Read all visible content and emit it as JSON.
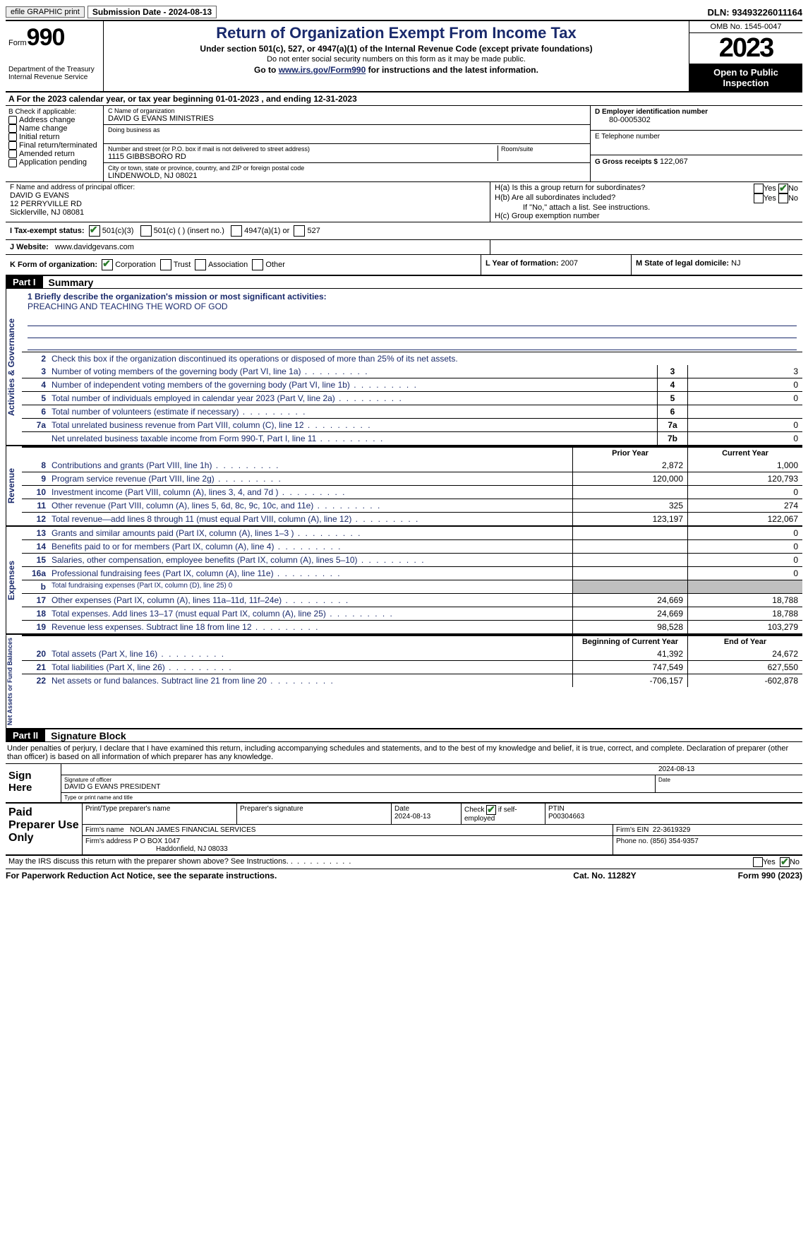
{
  "top": {
    "efile": "efile GRAPHIC print",
    "submission": "Submission Date - 2024-08-13",
    "dln": "DLN: 93493226011164"
  },
  "header": {
    "form_label": "Form",
    "form_number": "990",
    "dept": "Department of the Treasury Internal Revenue Service",
    "title": "Return of Organization Exempt From Income Tax",
    "subtitle": "Under section 501(c), 527, or 4947(a)(1) of the Internal Revenue Code (except private foundations)",
    "note": "Do not enter social security numbers on this form as it may be made public.",
    "goto_prefix": "Go to ",
    "goto_link": "www.irs.gov/Form990",
    "goto_suffix": " for instructions and the latest information.",
    "omb": "OMB No. 1545-0047",
    "year": "2023",
    "inspection": "Open to Public Inspection"
  },
  "A": "A  For the 2023 calendar year, or tax year beginning 01-01-2023   , and ending 12-31-2023",
  "B": {
    "label": "B Check if applicable:",
    "opts": [
      "Address change",
      "Name change",
      "Initial return",
      "Final return/terminated",
      "Amended return",
      "Application pending"
    ]
  },
  "C": {
    "name_label": "C Name of organization",
    "name": "DAVID G EVANS MINISTRIES",
    "dba_label": "Doing business as",
    "street_label": "Number and street (or P.O. box if mail is not delivered to street address)",
    "street": "1115 GIBBSBORO RD",
    "room_label": "Room/suite",
    "city_label": "City or town, state or province, country, and ZIP or foreign postal code",
    "city": "LINDENWOLD, NJ  08021"
  },
  "D": {
    "label": "D Employer identification number",
    "value": "80-0005302"
  },
  "E": {
    "label": "E Telephone number"
  },
  "G": {
    "label": "G Gross receipts $",
    "value": "122,067"
  },
  "F": {
    "label": "F  Name and address of principal officer:",
    "name": "DAVID G EVANS",
    "addr1": "12 PERRYVILLE RD",
    "addr2": "Sicklerville, NJ  08081"
  },
  "H": {
    "a_label": "H(a)  Is this a group return for subordinates?",
    "a_no": true,
    "b_label": "H(b)  Are all subordinates included?",
    "b_note": "If \"No,\" attach a list. See instructions.",
    "c_label": "H(c)  Group exemption number"
  },
  "I": {
    "label": "I   Tax-exempt status:",
    "o1": "501(c)(3)",
    "o2": "501(c) (  ) (insert no.)",
    "o3": "4947(a)(1) or",
    "o4": "527"
  },
  "J": {
    "label": "J   Website:",
    "value": "www.davidgevans.com"
  },
  "K": {
    "label": "K Form of organization:",
    "o1": "Corporation",
    "o2": "Trust",
    "o3": "Association",
    "o4": "Other"
  },
  "L": {
    "label": "L Year of formation:",
    "value": "2007"
  },
  "M": {
    "label": "M State of legal domicile:",
    "value": "NJ"
  },
  "parts": {
    "p1_header": "Part I",
    "p1_title": "Summary",
    "p2_header": "Part II",
    "p2_title": "Signature Block"
  },
  "summary": {
    "sides": [
      "Activities & Governance",
      "Revenue",
      "Expenses",
      "Net Assets or Fund Balances"
    ],
    "line1_label": "1   Briefly describe the organization's mission or most significant activities:",
    "mission": "PREACHING AND TEACHING THE WORD OF GOD",
    "line2": "Check this box      if the organization discontinued its operations or disposed of more than 25% of its net assets.",
    "gov": [
      {
        "n": "3",
        "t": "Number of voting members of the governing body (Part VI, line 1a)",
        "c": "3",
        "v": "3"
      },
      {
        "n": "4",
        "t": "Number of independent voting members of the governing body (Part VI, line 1b)",
        "c": "4",
        "v": "0"
      },
      {
        "n": "5",
        "t": "Total number of individuals employed in calendar year 2023 (Part V, line 2a)",
        "c": "5",
        "v": "0"
      },
      {
        "n": "6",
        "t": "Total number of volunteers (estimate if necessary)",
        "c": "6",
        "v": ""
      },
      {
        "n": "7a",
        "t": "Total unrelated business revenue from Part VIII, column (C), line 12",
        "c": "7a",
        "v": "0"
      },
      {
        "n": "",
        "t": "Net unrelated business taxable income from Form 990-T, Part I, line 11",
        "c": "7b",
        "v": "0"
      }
    ],
    "head_prior": "Prior Year",
    "head_current": "Current Year",
    "rev": [
      {
        "n": "8",
        "t": "Contributions and grants (Part VIII, line 1h)",
        "p": "2,872",
        "c": "1,000"
      },
      {
        "n": "9",
        "t": "Program service revenue (Part VIII, line 2g)",
        "p": "120,000",
        "c": "120,793"
      },
      {
        "n": "10",
        "t": "Investment income (Part VIII, column (A), lines 3, 4, and 7d )",
        "p": "",
        "c": "0"
      },
      {
        "n": "11",
        "t": "Other revenue (Part VIII, column (A), lines 5, 6d, 8c, 9c, 10c, and 11e)",
        "p": "325",
        "c": "274"
      },
      {
        "n": "12",
        "t": "Total revenue—add lines 8 through 11 (must equal Part VIII, column (A), line 12)",
        "p": "123,197",
        "c": "122,067"
      }
    ],
    "exp": [
      {
        "n": "13",
        "t": "Grants and similar amounts paid (Part IX, column (A), lines 1–3 )",
        "p": "",
        "c": "0"
      },
      {
        "n": "14",
        "t": "Benefits paid to or for members (Part IX, column (A), line 4)",
        "p": "",
        "c": "0"
      },
      {
        "n": "15",
        "t": "Salaries, other compensation, employee benefits (Part IX, column (A), lines 5–10)",
        "p": "",
        "c": "0"
      },
      {
        "n": "16a",
        "t": "Professional fundraising fees (Part IX, column (A), line 11e)",
        "p": "",
        "c": "0"
      },
      {
        "n": "b",
        "t": "Total fundraising expenses (Part IX, column (D), line 25) 0",
        "p": "SHADED",
        "c": "SHADED",
        "small": true
      },
      {
        "n": "17",
        "t": "Other expenses (Part IX, column (A), lines 11a–11d, 11f–24e)",
        "p": "24,669",
        "c": "18,788"
      },
      {
        "n": "18",
        "t": "Total expenses. Add lines 13–17 (must equal Part IX, column (A), line 25)",
        "p": "24,669",
        "c": "18,788"
      },
      {
        "n": "19",
        "t": "Revenue less expenses. Subtract line 18 from line 12",
        "p": "98,528",
        "c": "103,279"
      }
    ],
    "head_begin": "Beginning of Current Year",
    "head_end": "End of Year",
    "net": [
      {
        "n": "20",
        "t": "Total assets (Part X, line 16)",
        "p": "41,392",
        "c": "24,672"
      },
      {
        "n": "21",
        "t": "Total liabilities (Part X, line 26)",
        "p": "747,549",
        "c": "627,550"
      },
      {
        "n": "22",
        "t": "Net assets or fund balances. Subtract line 21 from line 20",
        "p": "-706,157",
        "c": "-602,878"
      }
    ]
  },
  "sig": {
    "declare": "Under penalties of perjury, I declare that I have examined this return, including accompanying schedules and statements, and to the best of my knowledge and belief, it is true, correct, and complete. Declaration of preparer (other than officer) is based on all information of which preparer has any knowledge.",
    "sign_here": "Sign Here",
    "date_top": "2024-08-13",
    "sig_label": "Signature of officer",
    "officer": "DAVID G EVANS  PRESIDENT",
    "type_label": "Type or print name and title",
    "date_label": "Date"
  },
  "prep": {
    "title": "Paid Preparer Use Only",
    "h1": "Print/Type preparer's name",
    "h2": "Preparer's signature",
    "h3": "Date",
    "date": "2024-08-13",
    "h4a": "Check",
    "h4b": "if self-employed",
    "h5": "PTIN",
    "ptin": "P00304663",
    "firm_label": "Firm's name",
    "firm": "NOLAN JAMES FINANCIAL SERVICES",
    "ein_label": "Firm's EIN",
    "ein": "22-3619329",
    "addr_label": "Firm's address",
    "addr1": "P O BOX 1047",
    "addr2": "Haddonfield, NJ  08033",
    "phone_label": "Phone no.",
    "phone": "(856) 354-9357"
  },
  "footer": {
    "discuss": "May the IRS discuss this return with the preparer shown above? See Instructions.",
    "yes": "Yes",
    "no": "No",
    "pra": "For Paperwork Reduction Act Notice, see the separate instructions.",
    "cat": "Cat. No. 11282Y",
    "form": "Form 990 (2023)"
  }
}
